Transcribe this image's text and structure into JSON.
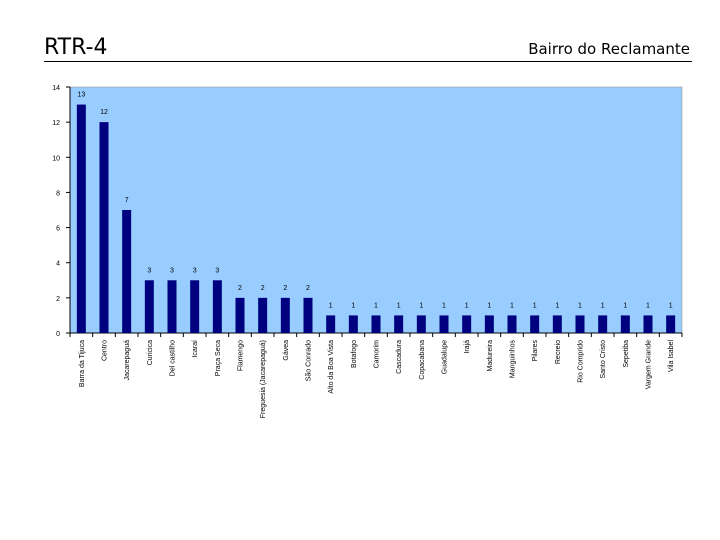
{
  "slide": {
    "title": "RTR-4",
    "subtitle": "Bairro do Reclamante"
  },
  "colors": {
    "plot_background": "#99ccff",
    "bar": "#000080",
    "axis": "#000000"
  },
  "chart_data": {
    "type": "bar",
    "title": "",
    "xlabel": "",
    "ylabel": "",
    "ylim": [
      0,
      14
    ],
    "yticks": [
      0,
      2,
      4,
      6,
      8,
      10,
      12,
      14
    ],
    "grid": false,
    "legend": "none",
    "categories": [
      "Barra da Tijuca",
      "Centro",
      "Jacarepaguá",
      "Curicica",
      "Del castilho",
      "Icaraí",
      "Praça Seca",
      "Flamengo",
      "Freguesia (Jacarepaguá)",
      "Gávea",
      "São Conrado",
      "Alto da Boa Vista",
      "Botafogo",
      "Camorim",
      "Cascadura",
      "Copacabana",
      "Guadalupe",
      "Irajá",
      "Madureira",
      "Manguinhos",
      "Pilares",
      "Recreio",
      "Rio Comprido",
      "Santo Cristo",
      "Sepetiba",
      "Vargem Grande",
      "Vila Isabel"
    ],
    "values": [
      13,
      12,
      7,
      3,
      3,
      3,
      3,
      2,
      2,
      2,
      2,
      1,
      1,
      1,
      1,
      1,
      1,
      1,
      1,
      1,
      1,
      1,
      1,
      1,
      1,
      1,
      1
    ]
  }
}
